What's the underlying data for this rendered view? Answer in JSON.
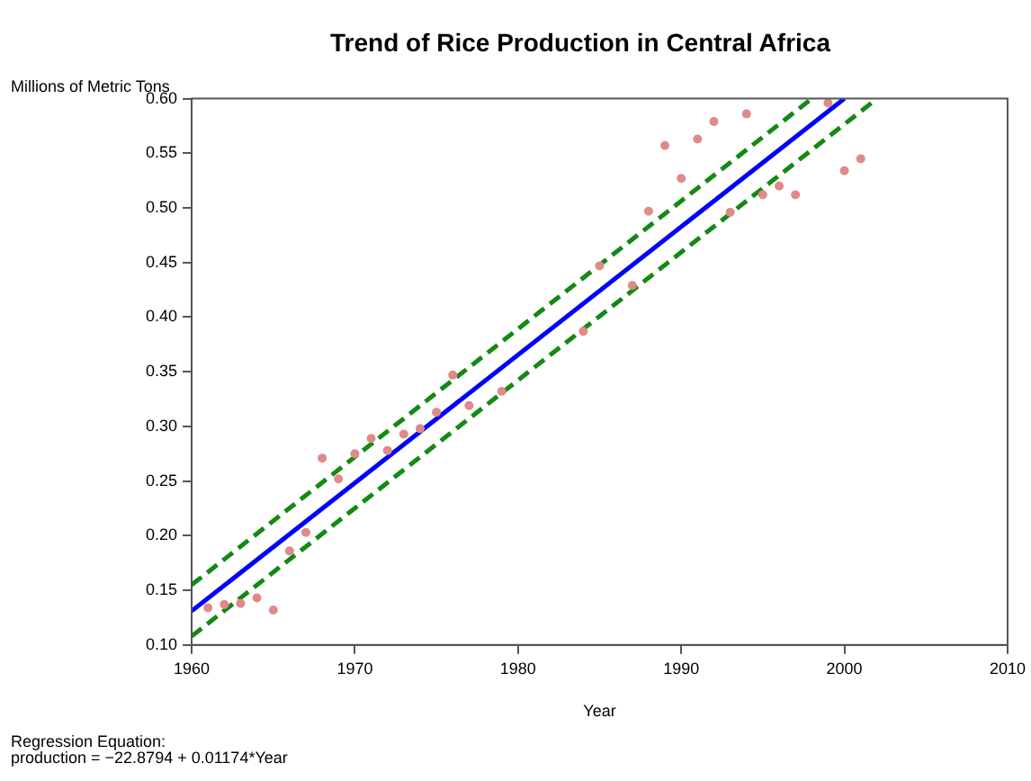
{
  "chart_data": {
    "type": "scatter",
    "title": "Trend of Rice Production in Central Africa",
    "xlabel": "Year",
    "ylabel": "Millions of Metric Tons",
    "annotations": [
      "Regression Equation:",
      "production =  −22.8794 + 0.01174*Year"
    ],
    "xlim": [
      1960,
      2010
    ],
    "xticks": [
      1960,
      1970,
      1980,
      1990,
      2000,
      2010
    ],
    "ylim": [
      0.1,
      0.6
    ],
    "yticks": [
      {
        "value": 0.1,
        "label": "0.10"
      },
      {
        "value": 0.15,
        "label": "0.15"
      },
      {
        "value": 0.2,
        "label": "0.20"
      },
      {
        "value": 0.25,
        "label": "0.25"
      },
      {
        "value": 0.3,
        "label": "0.30"
      },
      {
        "value": 0.35,
        "label": "0.35"
      },
      {
        "value": 0.4,
        "label": "0.40"
      },
      {
        "value": 0.45,
        "label": "0.45"
      },
      {
        "value": 0.5,
        "label": "0.50"
      },
      {
        "value": 0.55,
        "label": "0.55"
      },
      {
        "value": 0.6,
        "label": "0.60"
      }
    ],
    "grid": false,
    "legend": false,
    "series": [
      {
        "marker": "circle",
        "color": "#e08a8a",
        "x": [
          1961,
          1962,
          1963,
          1964,
          1965,
          1966,
          1967,
          1968,
          1969,
          1970,
          1971,
          1972,
          1973,
          1974,
          1975,
          1976,
          1977,
          1979,
          1984,
          1985,
          1987,
          1988,
          1989,
          1990,
          1991,
          1992,
          1993,
          1994,
          1995,
          1996,
          1997,
          1999,
          2000,
          2001
        ],
        "values": [
          0.134,
          0.137,
          0.138,
          0.143,
          0.132,
          0.186,
          0.203,
          0.271,
          0.252,
          0.275,
          0.289,
          0.278,
          0.293,
          0.298,
          0.313,
          0.347,
          0.319,
          0.332,
          0.387,
          0.447,
          0.429,
          0.497,
          0.557,
          0.527,
          0.563,
          0.579,
          0.496,
          0.586,
          0.512,
          0.52,
          0.512,
          0.596,
          0.534,
          0.545
        ]
      },
      {
        "type": "line",
        "marker": "none",
        "color": "#0000ff",
        "line_style": "solid",
        "x": [
          1960,
          2000
        ],
        "values": [
          0.131,
          0.6
        ]
      },
      {
        "type": "line",
        "marker": "none",
        "color": "#138a13",
        "line_style": "dashed",
        "x": [
          1960,
          1998
        ],
        "values": [
          0.155,
          0.6
        ]
      },
      {
        "type": "line",
        "marker": "none",
        "color": "#138a13",
        "line_style": "dashed",
        "x": [
          1960,
          2002
        ],
        "values": [
          0.108,
          0.6
        ]
      }
    ]
  }
}
